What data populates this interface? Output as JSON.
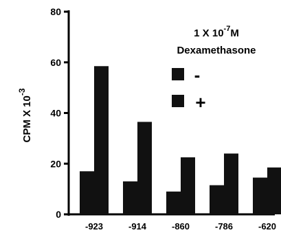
{
  "chart_data": {
    "type": "bar",
    "categories": [
      "-923",
      "-914",
      "-860",
      "-786",
      "-620"
    ],
    "series": [
      {
        "name": "-",
        "values": [
          17,
          13,
          9,
          11.5,
          14.5
        ]
      },
      {
        "name": "+",
        "values": [
          58.5,
          36.5,
          22.5,
          24,
          18.5
        ]
      }
    ],
    "ylabel_main": "CPM X 10",
    "ylabel_exp": "-3",
    "ylim": [
      0,
      80
    ],
    "yticks": [
      0,
      20,
      40,
      60,
      80
    ],
    "grid": false,
    "legend": {
      "title_line1_main": "1 X 10",
      "title_line1_exp": "-7",
      "title_line1_unit": "M",
      "title_line2": "Dexamethasone",
      "placement": "top-right"
    },
    "colors": {
      "bar": "#111111",
      "axis": "#000000",
      "background": "#ffffff"
    }
  }
}
